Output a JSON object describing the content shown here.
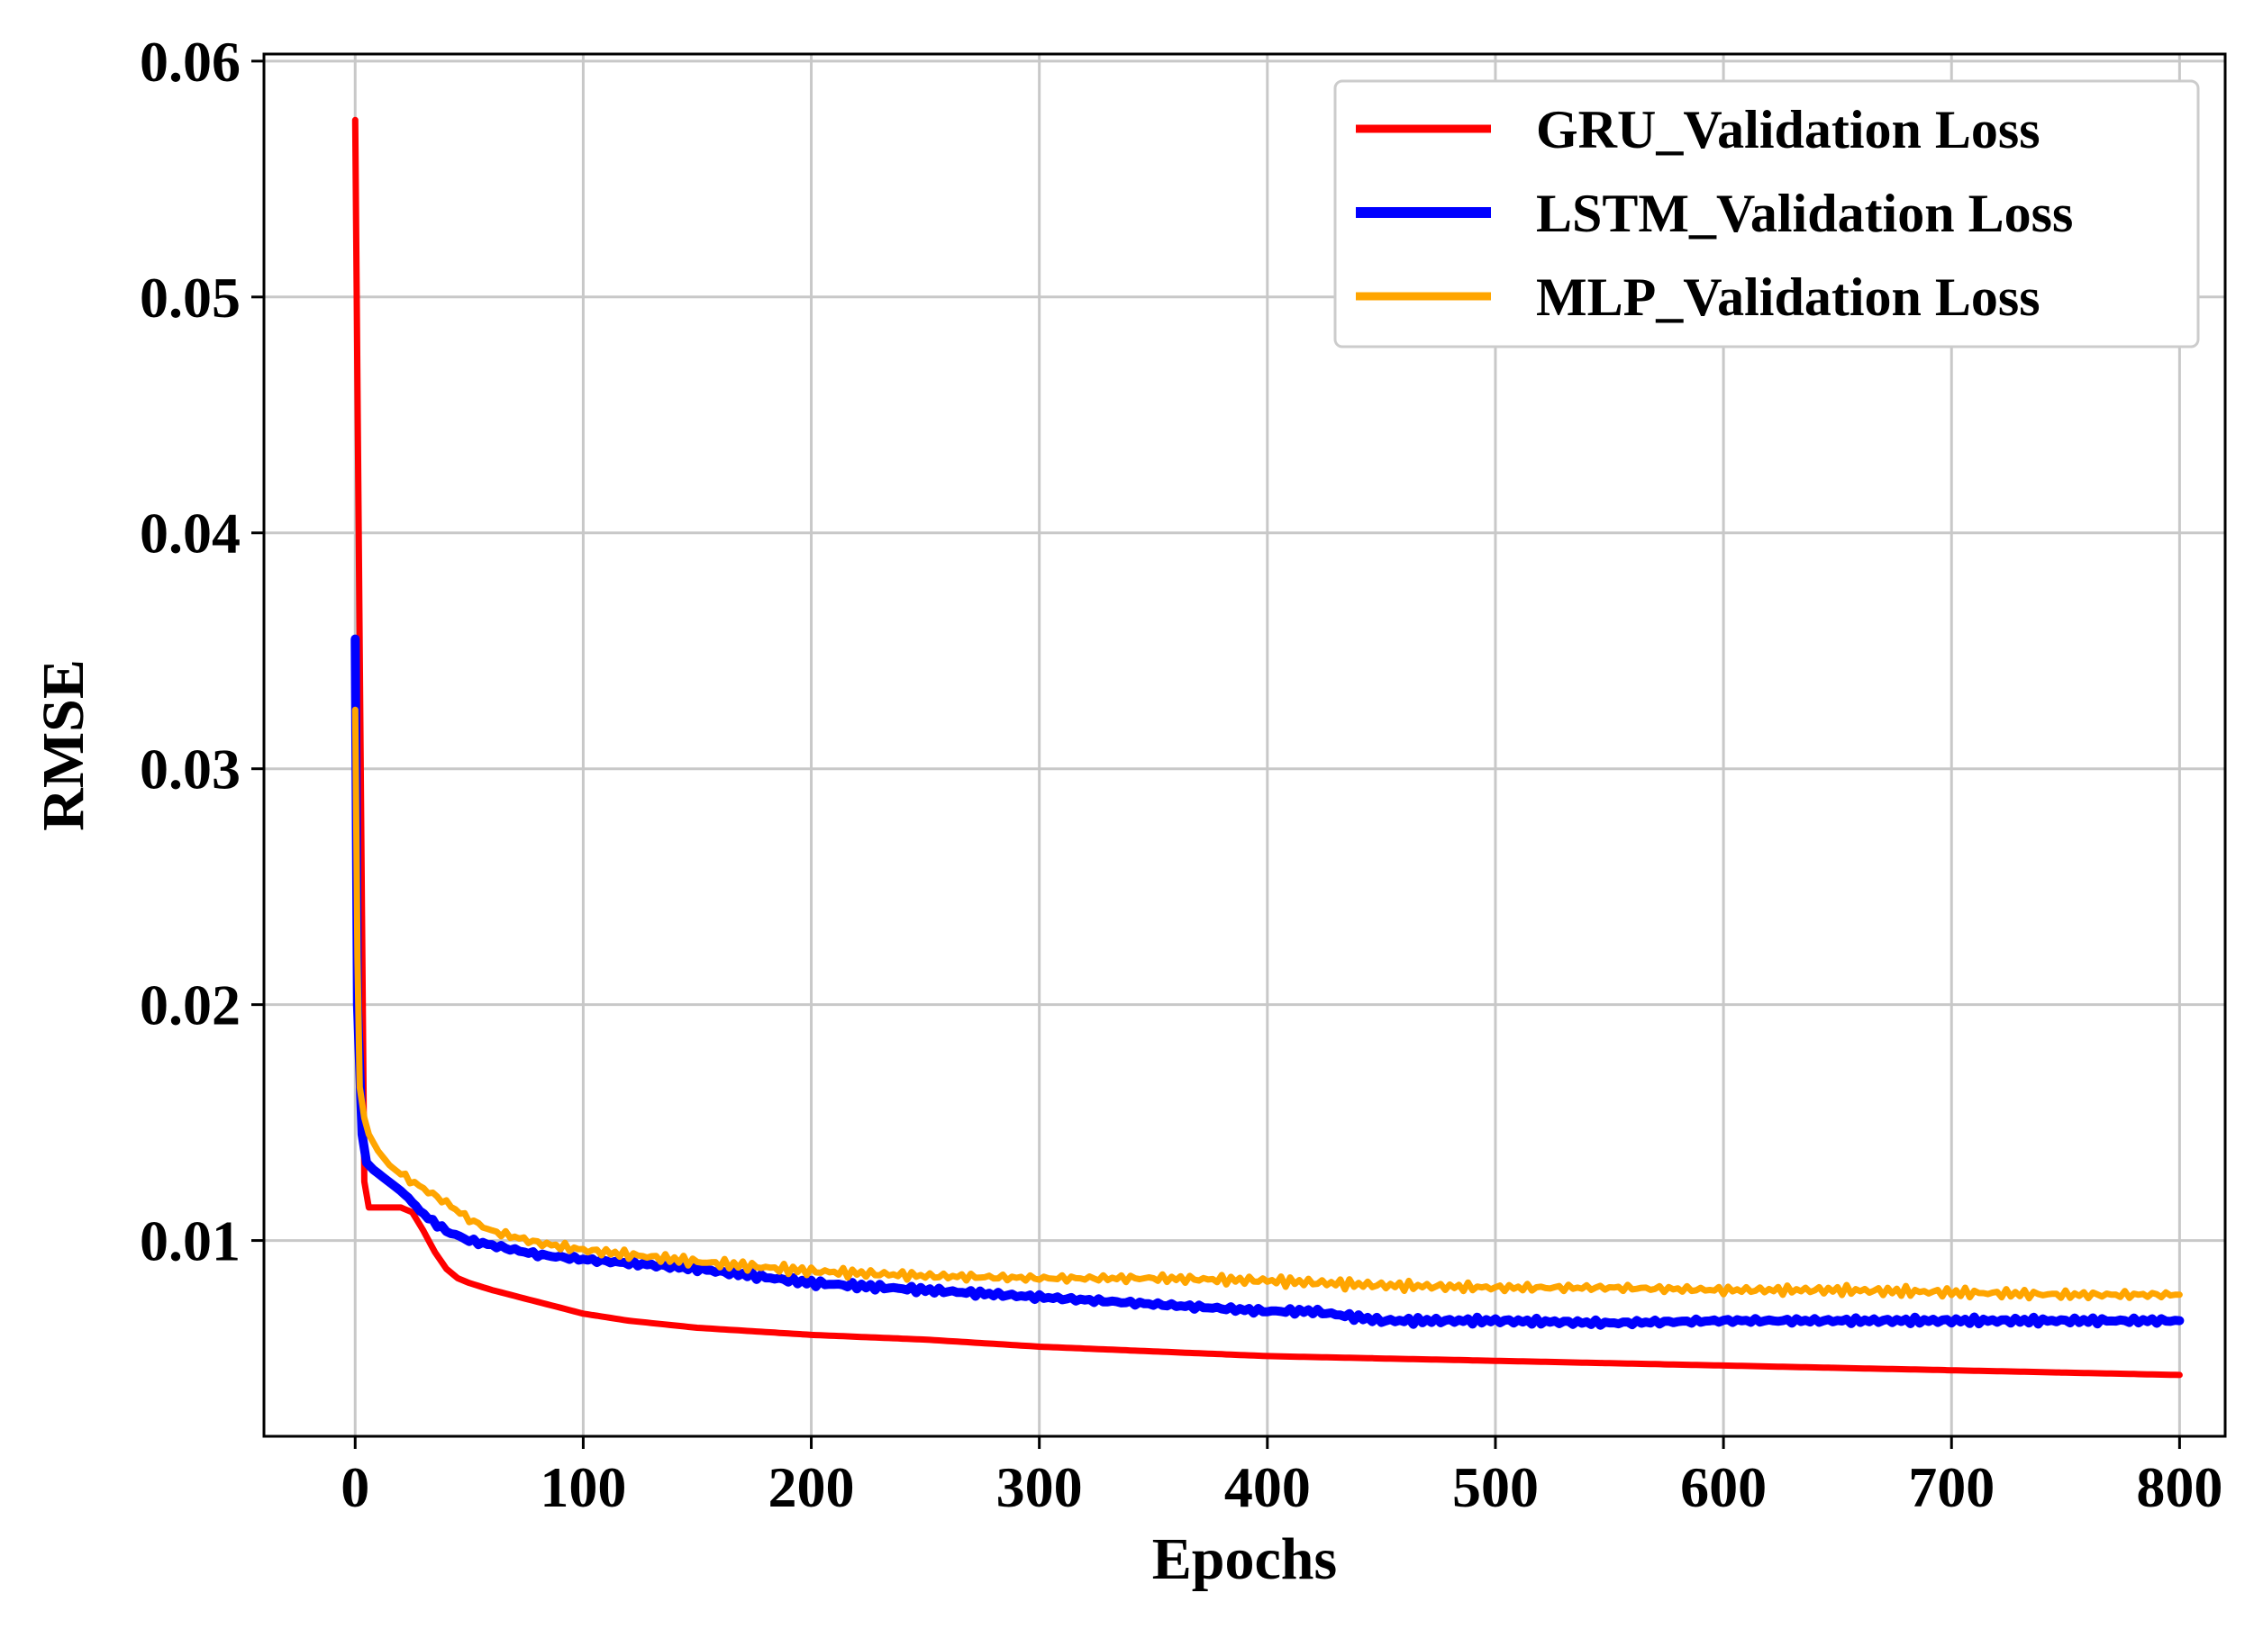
{
  "chart_data": {
    "type": "line",
    "title": "",
    "xlabel": "Epochs",
    "ylabel": "RMSE",
    "xlim": [
      -40,
      820
    ],
    "ylim": [
      0.0017,
      0.0603
    ],
    "xticks": [
      0,
      100,
      200,
      300,
      400,
      500,
      600,
      700,
      800
    ],
    "yticks": [
      0.01,
      0.02,
      0.03,
      0.04,
      0.05,
      0.06
    ],
    "xtick_labels": [
      "0",
      "100",
      "200",
      "300",
      "400",
      "500",
      "600",
      "700",
      "800"
    ],
    "ytick_labels": [
      "0.01",
      "0.02",
      "0.03",
      "0.04",
      "0.05",
      "0.06"
    ],
    "grid": true,
    "legend_position": "top-right",
    "series": [
      {
        "name": "GRU_Validation Loss",
        "color": "#ff0000",
        "x": [
          0,
          2,
          4,
          6,
          10,
          15,
          20,
          25,
          30,
          35,
          40,
          45,
          50,
          60,
          80,
          100,
          120,
          150,
          200,
          250,
          300,
          350,
          400,
          450,
          500,
          550,
          600,
          650,
          700,
          750,
          800
        ],
        "y": [
          0.0575,
          0.035,
          0.0125,
          0.0114,
          0.0114,
          0.0114,
          0.0114,
          0.0112,
          0.0104,
          0.0095,
          0.0088,
          0.0084,
          0.0082,
          0.0079,
          0.0074,
          0.0069,
          0.0066,
          0.0063,
          0.006,
          0.0058,
          0.0055,
          0.0053,
          0.0051,
          0.005,
          0.0049,
          0.0048,
          0.0047,
          0.0046,
          0.0045,
          0.0044,
          0.0043
        ]
      },
      {
        "name": "LSTM_Validation Loss",
        "color": "#0000ff",
        "x": [
          0,
          1,
          3,
          5,
          8,
          12,
          16,
          20,
          25,
          30,
          40,
          50,
          60,
          80,
          100,
          150,
          200,
          250,
          300,
          350,
          400,
          420,
          450,
          500,
          550,
          600,
          650,
          700,
          750,
          800
        ],
        "y": [
          0.0355,
          0.02,
          0.0145,
          0.0133,
          0.013,
          0.0127,
          0.0124,
          0.0121,
          0.0116,
          0.0111,
          0.0104,
          0.01,
          0.0098,
          0.0094,
          0.0092,
          0.0088,
          0.0082,
          0.0079,
          0.0076,
          0.0073,
          0.007,
          0.007,
          0.0066,
          0.0066,
          0.0065,
          0.0066,
          0.0066,
          0.0066,
          0.0066,
          0.0066
        ]
      },
      {
        "name": "MLP_Validation Loss",
        "color": "#ffa500",
        "x": [
          0,
          1,
          2,
          4,
          6,
          10,
          15,
          20,
          30,
          40,
          50,
          60,
          80,
          100,
          150,
          200,
          250,
          300,
          350,
          400,
          450,
          500,
          550,
          600,
          650,
          700,
          750,
          800
        ],
        "y": [
          0.0325,
          0.022,
          0.0165,
          0.0152,
          0.0145,
          0.0138,
          0.0132,
          0.0128,
          0.0122,
          0.0116,
          0.0109,
          0.0104,
          0.0099,
          0.0096,
          0.0091,
          0.0087,
          0.0085,
          0.0084,
          0.0084,
          0.0083,
          0.0081,
          0.008,
          0.008,
          0.0079,
          0.0079,
          0.0078,
          0.0077,
          0.0077
        ]
      }
    ]
  }
}
